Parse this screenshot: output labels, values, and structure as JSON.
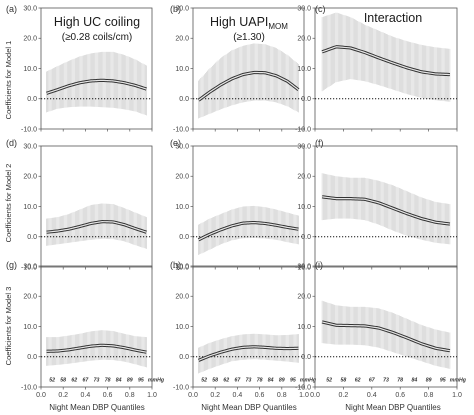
{
  "columns": [
    {
      "title": "High UC coiling",
      "subtitle": "(≥0.28 coils/cm)"
    },
    {
      "title": "High UAPI",
      "title_sub": "MOM",
      "subtitle": "(≥1.30)"
    },
    {
      "title": "Interaction",
      "subtitle": ""
    }
  ],
  "row_labels": [
    "Coefficients for Model 1",
    "Coefficients for Model 2",
    "Coefficients for Model 3"
  ],
  "x_axis_label": "Night Mean DBP Quantiles",
  "quantile_label_unit": "mmHg",
  "quantile_labels": [
    {
      "q": 0.1,
      "label": "52"
    },
    {
      "q": 0.2,
      "label": "58"
    },
    {
      "q": 0.3,
      "label": "62"
    },
    {
      "q": 0.4,
      "label": "67"
    },
    {
      "q": 0.5,
      "label": "73"
    },
    {
      "q": 0.6,
      "label": "78"
    },
    {
      "q": 0.7,
      "label": "84"
    },
    {
      "q": 0.8,
      "label": "89"
    },
    {
      "q": 0.9,
      "label": "95"
    }
  ],
  "chart_data": [
    {
      "type": "line",
      "panel": "(a)",
      "ylim": [
        -10,
        30
      ],
      "yticks": [
        "-10.0",
        "0.0",
        "10.0",
        "20.0",
        "30.0"
      ],
      "xlim": [
        0,
        1
      ],
      "xticks": [
        "0.0",
        "0.2",
        "0.4",
        "0.6",
        "0.8",
        "1.0"
      ],
      "x": [
        0.05,
        0.15,
        0.25,
        0.35,
        0.45,
        0.55,
        0.65,
        0.75,
        0.85,
        0.95
      ],
      "y": [
        1.8,
        3.0,
        4.3,
        5.3,
        5.9,
        6.1,
        5.9,
        5.3,
        4.4,
        3.2
      ],
      "lower": [
        -4.5,
        -3.3,
        -2.8,
        -2.6,
        -2.6,
        -2.8,
        -3.0,
        -3.5,
        -4.2,
        -5.5
      ],
      "upper": [
        9.0,
        10.8,
        12.5,
        14.0,
        15.0,
        15.5,
        15.5,
        14.5,
        13.0,
        11.0
      ]
    },
    {
      "type": "line",
      "panel": "(b)",
      "ylim": [
        -10,
        30
      ],
      "yticks": [
        "-10.0",
        "0.0",
        "10.0",
        "20.0",
        "30.0"
      ],
      "xlim": [
        0,
        1
      ],
      "xticks": [
        "0.0",
        "0.2",
        "0.4",
        "0.6",
        "0.8",
        "1.0"
      ],
      "x": [
        0.05,
        0.15,
        0.25,
        0.35,
        0.45,
        0.55,
        0.65,
        0.75,
        0.85,
        0.95
      ],
      "y": [
        -0.5,
        2.2,
        4.6,
        6.6,
        8.0,
        8.7,
        8.6,
        7.6,
        5.8,
        3.0
      ],
      "lower": [
        -6.5,
        -5.0,
        -3.5,
        -2.2,
        -1.2,
        -0.6,
        -0.6,
        -1.2,
        -2.5,
        -4.5
      ],
      "upper": [
        6.0,
        10.0,
        13.5,
        16.0,
        17.5,
        18.3,
        18.0,
        16.8,
        14.5,
        11.5
      ]
    },
    {
      "type": "line",
      "panel": "(c)",
      "ylim": [
        -10,
        30
      ],
      "yticks": [
        "-10.0",
        "0.0",
        "10.0",
        "20.0",
        "30.0"
      ],
      "xlim": [
        0,
        1
      ],
      "xticks": [
        "0.0",
        "0.2",
        "0.4",
        "0.6",
        "0.8",
        "1.0"
      ],
      "x": [
        0.05,
        0.15,
        0.25,
        0.35,
        0.45,
        0.55,
        0.65,
        0.75,
        0.85,
        0.95
      ],
      "y": [
        15.5,
        17.2,
        16.8,
        15.3,
        13.5,
        11.8,
        10.2,
        8.9,
        8.2,
        8.0
      ],
      "lower": [
        2.5,
        5.5,
        6.5,
        5.8,
        4.5,
        3.0,
        1.5,
        0.3,
        -0.5,
        -1.0
      ],
      "upper": [
        27.0,
        28.5,
        27.0,
        24.5,
        22.5,
        20.5,
        19.0,
        17.8,
        17.0,
        16.5
      ]
    },
    {
      "type": "line",
      "panel": "(d)",
      "ylim": [
        -10,
        30
      ],
      "yticks": [
        "-10.0",
        "0.0",
        "10.0",
        "20.0",
        "30.0"
      ],
      "xlim": [
        0,
        1
      ],
      "xticks": [
        "0.0",
        "0.2",
        "0.4",
        "0.6",
        "0.8",
        "1.0"
      ],
      "x": [
        0.05,
        0.15,
        0.25,
        0.35,
        0.45,
        0.55,
        0.65,
        0.75,
        0.85,
        0.95
      ],
      "y": [
        1.5,
        1.9,
        2.5,
        3.4,
        4.4,
        5.0,
        4.9,
        4.0,
        2.7,
        1.5
      ],
      "lower": [
        -3.0,
        -2.5,
        -2.0,
        -1.5,
        -1.0,
        -0.7,
        -0.8,
        -1.5,
        -2.8,
        -4.0
      ],
      "upper": [
        6.0,
        6.5,
        7.5,
        9.0,
        10.5,
        11.0,
        10.8,
        9.5,
        8.0,
        6.5
      ]
    },
    {
      "type": "line",
      "panel": "(e)",
      "ylim": [
        -10,
        30
      ],
      "yticks": [
        "-10.0",
        "0.0",
        "10.0",
        "20.0",
        "30.0"
      ],
      "xlim": [
        0,
        1
      ],
      "xticks": [
        "0.0",
        "0.2",
        "0.4",
        "0.6",
        "0.8",
        "1.0"
      ],
      "x": [
        0.05,
        0.15,
        0.25,
        0.35,
        0.45,
        0.55,
        0.65,
        0.75,
        0.85,
        0.95
      ],
      "y": [
        -1.0,
        0.8,
        2.3,
        3.6,
        4.5,
        4.7,
        4.4,
        3.8,
        3.1,
        2.5
      ],
      "lower": [
        -6.0,
        -4.3,
        -2.5,
        -1.2,
        -0.5,
        -0.4,
        -0.6,
        -1.0,
        -1.8,
        -2.5
      ],
      "upper": [
        4.0,
        6.0,
        7.5,
        9.0,
        10.0,
        10.2,
        9.8,
        9.0,
        8.0,
        7.0
      ]
    },
    {
      "type": "line",
      "panel": "(f)",
      "ylim": [
        -10,
        30
      ],
      "yticks": [
        "-10.0",
        "0.0",
        "10.0",
        "20.0",
        "30.0"
      ],
      "xlim": [
        0,
        1
      ],
      "xticks": [
        "0.0",
        "0.2",
        "0.4",
        "0.6",
        "0.8",
        "1.0"
      ],
      "x": [
        0.05,
        0.15,
        0.25,
        0.35,
        0.45,
        0.55,
        0.65,
        0.75,
        0.85,
        0.95
      ],
      "y": [
        13.2,
        12.6,
        12.6,
        12.4,
        11.2,
        9.4,
        7.6,
        6.0,
        4.8,
        4.2
      ],
      "lower": [
        5.5,
        6.0,
        6.0,
        5.5,
        4.0,
        2.0,
        0.3,
        -1.0,
        -2.0,
        -2.5
      ],
      "upper": [
        21.0,
        20.0,
        19.5,
        19.5,
        18.5,
        17.0,
        15.0,
        13.0,
        11.5,
        10.8
      ]
    },
    {
      "type": "line",
      "panel": "(g)",
      "ylim": [
        -10,
        30
      ],
      "yticks": [
        "-10.0",
        "0.0",
        "10.0",
        "20.0",
        "30.0"
      ],
      "xlim": [
        0,
        1
      ],
      "xticks": [
        "0.0",
        "0.2",
        "0.4",
        "0.6",
        "0.8",
        "1.0"
      ],
      "x": [
        0.05,
        0.15,
        0.25,
        0.35,
        0.45,
        0.55,
        0.65,
        0.75,
        0.85,
        0.95
      ],
      "y": [
        1.8,
        1.9,
        2.3,
        2.9,
        3.5,
        3.8,
        3.6,
        3.0,
        2.2,
        1.5
      ],
      "lower": [
        -3.0,
        -2.7,
        -2.3,
        -1.8,
        -1.3,
        -1.0,
        -1.1,
        -1.6,
        -2.5,
        -3.5
      ],
      "upper": [
        6.5,
        6.5,
        7.0,
        7.6,
        8.4,
        8.8,
        8.5,
        7.6,
        6.8,
        6.5
      ]
    },
    {
      "type": "line",
      "panel": "(h)",
      "ylim": [
        -10,
        30
      ],
      "yticks": [
        "-10.0",
        "0.0",
        "10.0",
        "20.0",
        "30.0"
      ],
      "xlim": [
        0,
        1
      ],
      "xticks": [
        "0.0",
        "0.2",
        "0.4",
        "0.6",
        "0.8",
        "1.0"
      ],
      "x": [
        0.05,
        0.15,
        0.25,
        0.35,
        0.45,
        0.55,
        0.65,
        0.75,
        0.85,
        0.95
      ],
      "y": [
        -1.2,
        0.3,
        1.5,
        2.5,
        3.1,
        3.3,
        3.1,
        2.8,
        2.7,
        2.8
      ],
      "lower": [
        -5.5,
        -4.0,
        -2.7,
        -1.5,
        -1.0,
        -0.8,
        -1.0,
        -1.3,
        -1.6,
        -2.0
      ],
      "upper": [
        3.0,
        4.6,
        5.8,
        6.8,
        7.4,
        7.6,
        7.4,
        7.1,
        7.2,
        7.5
      ]
    },
    {
      "type": "line",
      "panel": "(i)",
      "ylim": [
        -10,
        30
      ],
      "yticks": [
        "-10.0",
        "0.0",
        "10.0",
        "20.0",
        "30.0"
      ],
      "xlim": [
        0,
        1
      ],
      "xticks": [
        "0.0",
        "0.2",
        "0.4",
        "0.6",
        "0.8",
        "1.0"
      ],
      "x": [
        0.05,
        0.15,
        0.25,
        0.35,
        0.45,
        0.55,
        0.65,
        0.75,
        0.85,
        0.95
      ],
      "y": [
        11.5,
        10.4,
        10.3,
        10.2,
        9.5,
        8.0,
        6.2,
        4.3,
        2.8,
        2.0
      ],
      "lower": [
        4.5,
        4.0,
        4.0,
        3.8,
        3.0,
        1.5,
        0.0,
        -1.5,
        -3.0,
        -4.0
      ],
      "upper": [
        18.5,
        17.0,
        16.5,
        16.5,
        16.0,
        14.5,
        12.5,
        10.5,
        9.0,
        8.0
      ]
    }
  ]
}
